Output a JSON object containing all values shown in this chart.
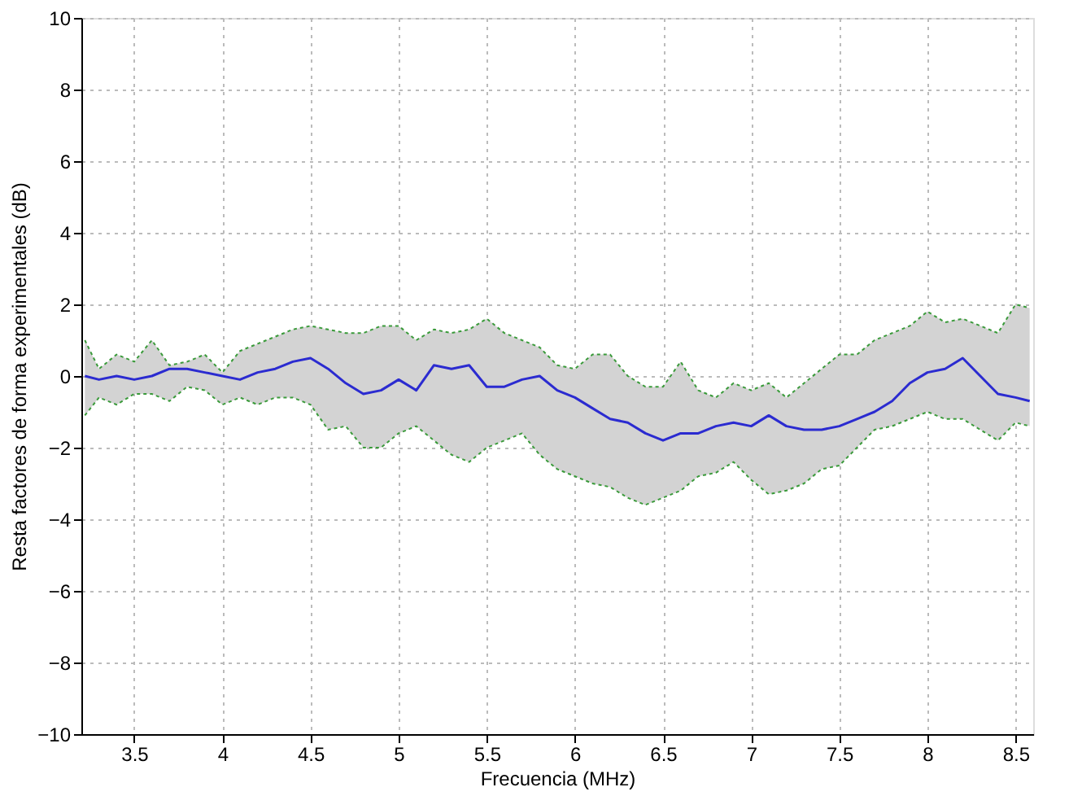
{
  "chart_data": {
    "type": "line",
    "xlabel": "Frecuencia (MHz)",
    "ylabel": "Resta factores de forma experimentales (dB)",
    "x": [
      3.22,
      3.3,
      3.4,
      3.5,
      3.6,
      3.7,
      3.8,
      3.9,
      4.0,
      4.1,
      4.2,
      4.3,
      4.4,
      4.5,
      4.6,
      4.7,
      4.8,
      4.9,
      5.0,
      5.1,
      5.2,
      5.3,
      5.4,
      5.5,
      5.6,
      5.7,
      5.8,
      5.9,
      6.0,
      6.1,
      6.2,
      6.3,
      6.4,
      6.5,
      6.6,
      6.7,
      6.8,
      6.9,
      7.0,
      7.1,
      7.2,
      7.3,
      7.4,
      7.5,
      7.6,
      7.7,
      7.8,
      7.9,
      8.0,
      8.1,
      8.2,
      8.3,
      8.4,
      8.5,
      8.58
    ],
    "series": [
      {
        "color": "#2b2bd0",
        "values": [
          0,
          -0.1,
          0.0,
          -0.1,
          0.0,
          0.2,
          0.2,
          0.1,
          0.0,
          -0.1,
          0.1,
          0.2,
          0.4,
          0.5,
          0.2,
          -0.2,
          -0.5,
          -0.4,
          -0.1,
          -0.4,
          0.3,
          0.2,
          0.3,
          -0.3,
          -0.3,
          -0.1,
          0.0,
          -0.4,
          -0.6,
          -0.9,
          -1.2,
          -1.3,
          -1.6,
          -1.8,
          -1.6,
          -1.6,
          -1.4,
          -1.3,
          -1.4,
          -1.1,
          -1.4,
          -1.5,
          -1.5,
          -1.4,
          -1.2,
          -1.0,
          -0.7,
          -0.2,
          0.1,
          0.2,
          0.5,
          0.0,
          -0.5,
          -0.6,
          -0.7
        ],
        "upper": [
          1.0,
          0.2,
          0.6,
          0.4,
          1.0,
          0.3,
          0.4,
          0.6,
          0.1,
          0.7,
          0.9,
          1.1,
          1.3,
          1.4,
          1.3,
          1.2,
          1.2,
          1.4,
          1.4,
          1.0,
          1.3,
          1.2,
          1.3,
          1.6,
          1.2,
          1.0,
          0.8,
          0.3,
          0.2,
          0.6,
          0.6,
          0.0,
          -0.3,
          -0.3,
          0.4,
          -0.4,
          -0.6,
          -0.2,
          -0.4,
          -0.2,
          -0.6,
          -0.2,
          0.2,
          0.6,
          0.6,
          1.0,
          1.2,
          1.4,
          1.8,
          1.5,
          1.6,
          1.4,
          1.2,
          2.0,
          1.9
        ],
        "lower": [
          -1.1,
          -0.6,
          -0.8,
          -0.5,
          -0.5,
          -0.7,
          -0.3,
          -0.4,
          -0.8,
          -0.6,
          -0.8,
          -0.6,
          -0.6,
          -0.8,
          -1.5,
          -1.4,
          -2.0,
          -2.0,
          -1.6,
          -1.4,
          -1.8,
          -2.2,
          -2.4,
          -2.0,
          -1.8,
          -1.6,
          -2.2,
          -2.6,
          -2.8,
          -3.0,
          -3.1,
          -3.4,
          -3.6,
          -3.4,
          -3.2,
          -2.8,
          -2.7,
          -2.4,
          -2.9,
          -3.3,
          -3.2,
          -3.0,
          -2.6,
          -2.5,
          -2.0,
          -1.5,
          -1.4,
          -1.2,
          -1.0,
          -1.2,
          -1.2,
          -1.5,
          -1.8,
          -1.3,
          -1.4
        ]
      },
      {
        "color": "#3a9a3a",
        "line_style": "dotted",
        "values": [
          1.0,
          0.2,
          0.6,
          0.4,
          1.0,
          0.3,
          0.4,
          0.6,
          0.1,
          0.7,
          0.9,
          1.1,
          1.3,
          1.4,
          1.3,
          1.2,
          1.2,
          1.4,
          1.4,
          1.0,
          1.3,
          1.2,
          1.3,
          1.6,
          1.2,
          1.0,
          0.8,
          0.3,
          0.2,
          0.6,
          0.6,
          0.0,
          -0.3,
          -0.3,
          0.4,
          -0.4,
          -0.6,
          -0.2,
          -0.4,
          -0.2,
          -0.6,
          -0.2,
          0.2,
          0.6,
          0.6,
          1.0,
          1.2,
          1.4,
          1.8,
          1.5,
          1.6,
          1.4,
          1.2,
          2.0,
          1.9
        ]
      },
      {
        "color": "#3a9a3a",
        "line_style": "dotted",
        "values": [
          -1.1,
          -0.6,
          -0.8,
          -0.5,
          -0.5,
          -0.7,
          -0.3,
          -0.4,
          -0.8,
          -0.6,
          -0.8,
          -0.6,
          -0.6,
          -0.8,
          -1.5,
          -1.4,
          -2.0,
          -2.0,
          -1.6,
          -1.4,
          -1.8,
          -2.2,
          -2.4,
          -2.0,
          -1.8,
          -1.6,
          -2.2,
          -2.6,
          -2.8,
          -3.0,
          -3.1,
          -3.4,
          -3.6,
          -3.4,
          -3.2,
          -2.8,
          -2.7,
          -2.4,
          -2.9,
          -3.3,
          -3.2,
          -3.0,
          -2.6,
          -2.5,
          -2.0,
          -1.5,
          -1.4,
          -1.2,
          -1.0,
          -1.2,
          -1.2,
          -1.5,
          -1.8,
          -1.3,
          -1.4
        ]
      }
    ],
    "xlim": [
      3.2,
      8.6
    ],
    "xticks": [
      3.5,
      4,
      4.5,
      5,
      5.5,
      6,
      6.5,
      7,
      7.5,
      8,
      8.5
    ],
    "ylim": [
      -10,
      10
    ],
    "yticks": [
      -10,
      -8,
      -6,
      -4,
      -2,
      0,
      2,
      4,
      6,
      8,
      10
    ],
    "grid": true,
    "marker": "none",
    "line_style": "solid"
  }
}
